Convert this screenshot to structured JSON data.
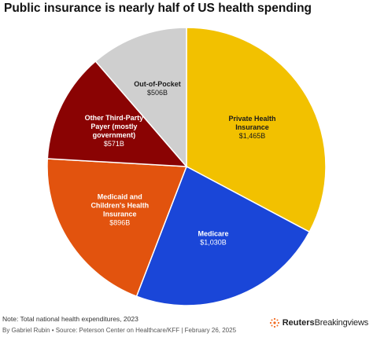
{
  "title": "Public insurance is nearly half of US health spending",
  "note": "Note: Total national health expenditures, 2023",
  "byline": "By Gabriel Rubin • Source: Peterson Center on Healthcare/KFF | February 26, 2025",
  "brand": {
    "name_bold": "Reuters",
    "name_regular": "Breakingviews",
    "icon": "reuters-dot-logo-icon"
  },
  "chart_data": {
    "type": "pie",
    "title": "Public insurance is nearly half of US health spending",
    "slices": [
      {
        "name_lines": [
          "Private Health",
          "Insurance"
        ],
        "value_label": "$1,465B",
        "value": 1465,
        "color": "#f2c100",
        "text_color": "#1a1a1a"
      },
      {
        "name_lines": [
          "Medicare"
        ],
        "value_label": "$1,030B",
        "value": 1030,
        "color": "#1a46d8",
        "text_color": "#ffffff"
      },
      {
        "name_lines": [
          "Medicaid and",
          "Children's Health",
          "Insurance"
        ],
        "value_label": "$896B",
        "value": 896,
        "color": "#e2530e",
        "text_color": "#ffffff"
      },
      {
        "name_lines": [
          "Other Third-Party",
          "Payer (mostly",
          "government)"
        ],
        "value_label": "$571B",
        "value": 571,
        "color": "#8a0303",
        "text_color": "#ffffff"
      },
      {
        "name_lines": [
          "Out-of-Pocket"
        ],
        "value_label": "$506B",
        "value": 506,
        "color": "#cfcfcf",
        "text_color": "#1a1a1a"
      }
    ]
  }
}
